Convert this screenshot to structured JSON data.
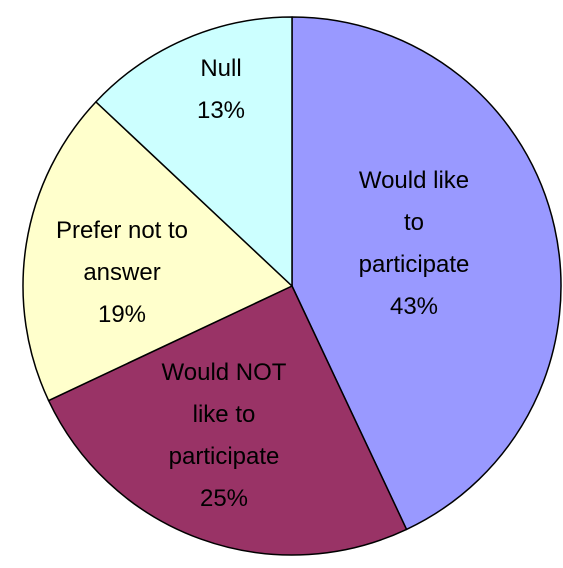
{
  "chart_data": {
    "type": "pie",
    "start_angle_deg": 0,
    "direction": "clockwise",
    "slices": [
      {
        "label_lines": [
          "Would like",
          "to",
          "participate"
        ],
        "value": 43,
        "value_label": "43%",
        "color": "#9999FF"
      },
      {
        "label_lines": [
          "Would NOT",
          "like to",
          "participate"
        ],
        "value": 25,
        "value_label": "25%",
        "color": "#993366"
      },
      {
        "label_lines": [
          "Prefer not to",
          "answer"
        ],
        "value": 19,
        "value_label": "19%",
        "color": "#FFFFCC"
      },
      {
        "label_lines": [
          "Null"
        ],
        "value": 13,
        "value_label": "13%",
        "color": "#CCFFFF"
      }
    ]
  }
}
